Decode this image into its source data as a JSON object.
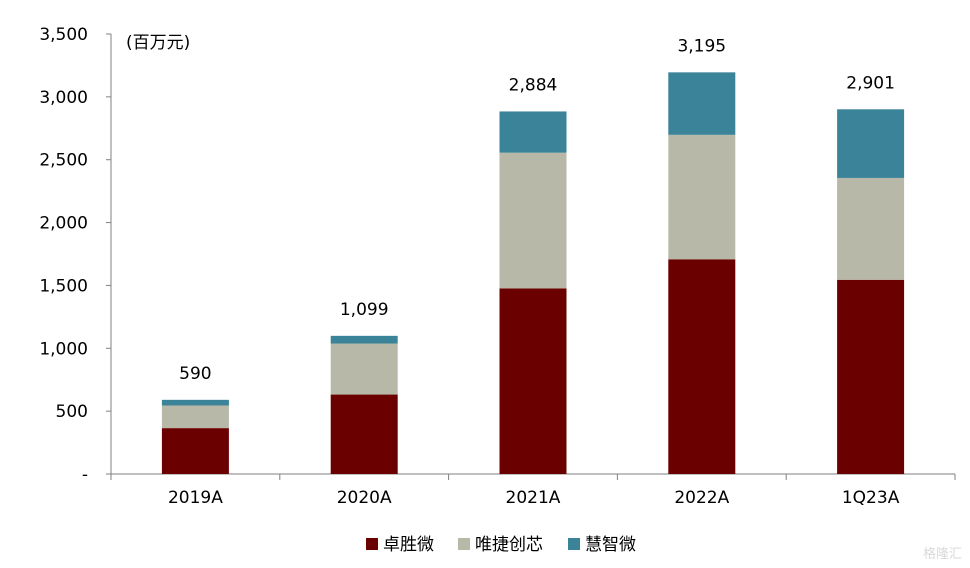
{
  "chart_data": {
    "type": "bar",
    "stacked": true,
    "unit": "(百万元)",
    "categories": [
      "2019A",
      "2020A",
      "2021A",
      "2022A",
      "1Q23A"
    ],
    "series": [
      {
        "name": "卓胜微",
        "color": "#6b0000",
        "values": [
          365,
          632,
          1476,
          1708,
          1545
        ]
      },
      {
        "name": "唯捷创芯",
        "color": "#b8b8a8",
        "values": [
          180,
          406,
          1080,
          990,
          810
        ]
      },
      {
        "name": "慧智微",
        "color": "#3a8399",
        "values": [
          45,
          61,
          328,
          497,
          546
        ]
      }
    ],
    "totals": [
      "590",
      "1,099",
      "2,884",
      "3,195",
      "2,901"
    ],
    "ylim": [
      0,
      3500
    ],
    "yticks": [
      {
        "value": 0,
        "label": "-"
      },
      {
        "value": 500,
        "label": "500"
      },
      {
        "value": 1000,
        "label": "1,000"
      },
      {
        "value": 1500,
        "label": "1,500"
      },
      {
        "value": 2000,
        "label": "2,000"
      },
      {
        "value": 2500,
        "label": "2,500"
      },
      {
        "value": 3000,
        "label": "3,000"
      },
      {
        "value": 3500,
        "label": "3,500"
      }
    ],
    "grid": false,
    "legend_position": "bottom"
  },
  "watermark": "格隆汇"
}
